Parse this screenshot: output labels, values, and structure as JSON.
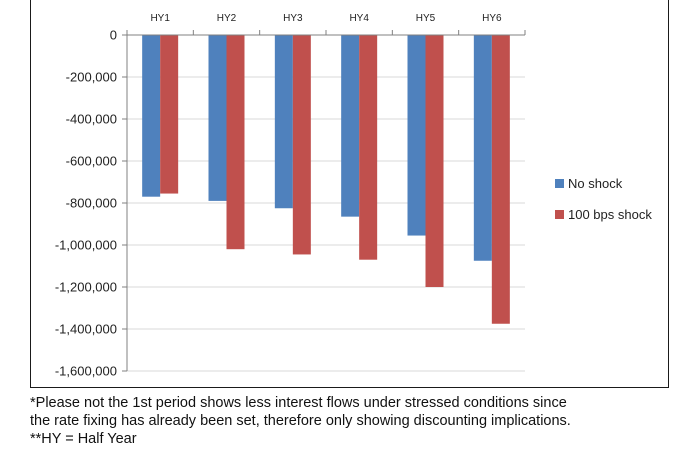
{
  "colors": {
    "no_shock": "#4f81bd",
    "shock": "#c0504d",
    "axis": "#808080",
    "grid": "#d9d9d9"
  },
  "chart_data": {
    "type": "bar",
    "categories": [
      "HY1",
      "HY2",
      "HY3",
      "HY4",
      "HY5",
      "HY6"
    ],
    "series": [
      {
        "name": "No shock",
        "values": [
          -770000,
          -790000,
          -825000,
          -865000,
          -955000,
          -1075000
        ]
      },
      {
        "name": "100 bps shock",
        "values": [
          -755000,
          -1020000,
          -1045000,
          -1070000,
          -1200000,
          -1375000
        ]
      }
    ],
    "yticks": [
      "0",
      "-200,000",
      "-400,000",
      "-600,000",
      "-800,000",
      "-1,000,000",
      "-1,200,000",
      "-1,400,000",
      "-1,600,000"
    ],
    "ylim": [
      -1600000,
      0
    ],
    "legend": "right",
    "title": "",
    "xlabel": "",
    "ylabel": ""
  },
  "footnote": {
    "line1": "*Please not the 1st period shows less interest flows under stressed conditions since",
    "line2": "the rate fixing has already been set, therefore only showing discounting implications.",
    "line3": "**HY = Half Year"
  }
}
